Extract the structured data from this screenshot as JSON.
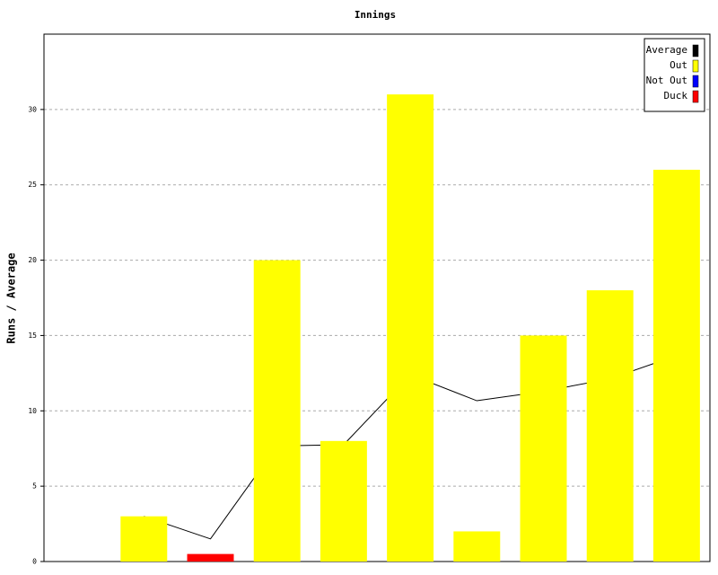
{
  "chart_data": {
    "type": "bar",
    "title": "Innings",
    "y_label": "Runs / Average",
    "categories": [
      null,
      null,
      null,
      null,
      null,
      null,
      null,
      null,
      null,
      null
    ],
    "series": [
      {
        "name": "Average",
        "color": "#000000",
        "type": "line",
        "values": [
          null,
          3,
          1.5,
          7.67,
          7.75,
          12.4,
          10.67,
          11.29,
          12.13,
          13.67
        ]
      },
      {
        "name": "Out",
        "color": "#ffff00",
        "type": "bar",
        "values": [
          null,
          3,
          null,
          20,
          8,
          31,
          2,
          15,
          18,
          26
        ]
      },
      {
        "name": "Not Out",
        "color": "#0000ff",
        "type": "bar",
        "values": [
          null,
          null,
          null,
          null,
          null,
          null,
          null,
          null,
          null,
          null
        ]
      },
      {
        "name": "Duck",
        "color": "#ff0000",
        "type": "bar",
        "values": [
          null,
          null,
          0.5,
          null,
          null,
          null,
          null,
          null,
          null,
          null
        ]
      }
    ],
    "ylim": [
      0,
      35
    ],
    "yticks": [
      0,
      5,
      10,
      15,
      20,
      25,
      30
    ],
    "grid": true,
    "legend": "top-right"
  }
}
